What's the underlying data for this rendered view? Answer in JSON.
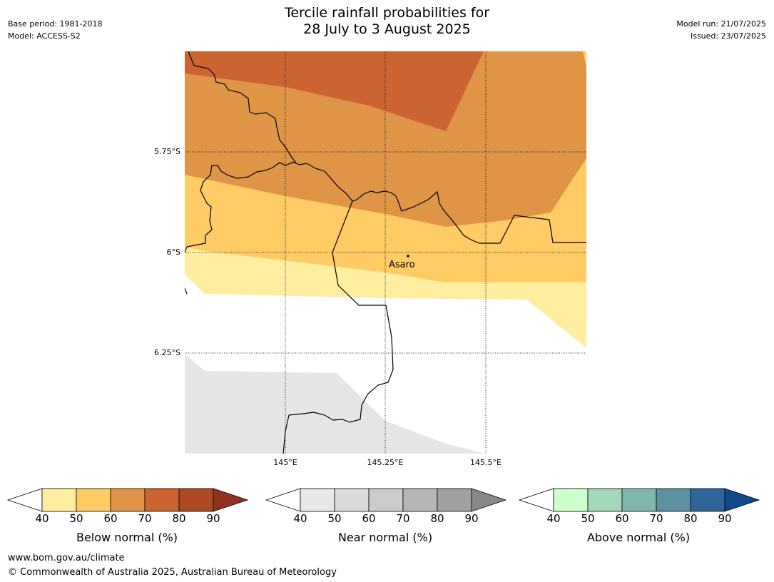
{
  "title": {
    "line1": "Tercile rainfall probabilities for",
    "line2": "28 July to 3 August 2025"
  },
  "meta_left": {
    "base_period": "Base period: 1981-2018",
    "model": "Model: ACCESS-S2"
  },
  "meta_right": {
    "model_run": "Model run: 21/07/2025",
    "issued": "Issued: 23/07/2025"
  },
  "map": {
    "lat_labels": [
      "5.75°S",
      "6°S",
      "6.25°S"
    ],
    "lon_labels": [
      "145°E",
      "145.25°E",
      "145.5°E"
    ],
    "place": {
      "name": "Asaro"
    }
  },
  "colorbars": [
    {
      "label": "Below normal (%)",
      "ticks": [
        "40",
        "50",
        "60",
        "70",
        "80",
        "90"
      ],
      "colors": [
        "#ffffff",
        "#ffeda0",
        "#fecb65",
        "#e09445",
        "#cc6432",
        "#ad4a25",
        "#8f3320"
      ]
    },
    {
      "label": "Near normal (%)",
      "ticks": [
        "40",
        "50",
        "60",
        "70",
        "80",
        "90"
      ],
      "colors": [
        "#ffffff",
        "#e8e8e8",
        "#dadada",
        "#cbcbcb",
        "#b6b6b6",
        "#a0a0a0",
        "#888888"
      ]
    },
    {
      "label": "Above normal (%)",
      "ticks": [
        "40",
        "50",
        "60",
        "70",
        "80",
        "90"
      ],
      "colors": [
        "#ffffff",
        "#ccffcc",
        "#a3d8bb",
        "#80b7ad",
        "#5b91a1",
        "#2f6598",
        "#0f4a8a"
      ]
    }
  ],
  "footer": {
    "url": "www.bom.gov.au/climate",
    "copyright": "© Commonwealth of Australia 2025, Australian Bureau of Meteorology"
  }
}
